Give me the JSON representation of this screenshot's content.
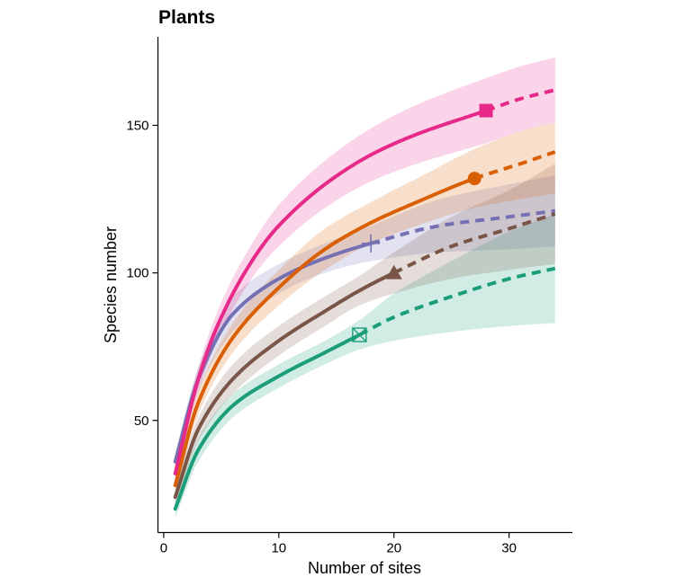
{
  "chart_data": {
    "type": "line",
    "title": "Plants",
    "xlabel": "Number of sites",
    "ylabel": "Species number",
    "xlim": [
      -0.5,
      35.5
    ],
    "ylim": [
      12,
      180
    ],
    "xticks": [
      0,
      10,
      20,
      30
    ],
    "yticks": [
      50,
      100,
      150
    ],
    "grid": false,
    "legend": "none",
    "x_start": 1,
    "x_end": 34,
    "series": [
      {
        "color": "#7570b3",
        "marker": "plus",
        "observed_sites": 18,
        "observed_value": 110,
        "points": [
          [
            1,
            36
          ],
          [
            3,
            64
          ],
          [
            6,
            86
          ],
          [
            10,
            98
          ],
          [
            14,
            105
          ],
          [
            18,
            110
          ],
          [
            24,
            116
          ],
          [
            30,
            119
          ],
          [
            34,
            121
          ]
        ],
        "band_low": [
          [
            1,
            33
          ],
          [
            3,
            60
          ],
          [
            6,
            80
          ],
          [
            10,
            93
          ],
          [
            14,
            100
          ],
          [
            18,
            104
          ],
          [
            24,
            107
          ],
          [
            30,
            108
          ],
          [
            34,
            109
          ]
        ],
        "band_high": [
          [
            1,
            39
          ],
          [
            3,
            68
          ],
          [
            6,
            92
          ],
          [
            10,
            103
          ],
          [
            14,
            110
          ],
          [
            18,
            116
          ],
          [
            24,
            125
          ],
          [
            30,
            130
          ],
          [
            34,
            133
          ]
        ]
      },
      {
        "color": "#1b9e77",
        "marker": "boxed-x",
        "observed_sites": 17,
        "observed_value": 79,
        "points": [
          [
            1,
            20
          ],
          [
            3,
            40
          ],
          [
            6,
            55
          ],
          [
            10,
            65
          ],
          [
            14,
            73
          ],
          [
            17,
            79
          ],
          [
            20,
            85
          ],
          [
            25,
            92
          ],
          [
            30,
            98
          ],
          [
            34,
            101.5
          ]
        ],
        "band_low": [
          [
            1,
            17
          ],
          [
            3,
            36
          ],
          [
            6,
            51
          ],
          [
            10,
            61
          ],
          [
            14,
            69
          ],
          [
            17,
            74
          ],
          [
            20,
            77
          ],
          [
            25,
            80
          ],
          [
            30,
            82
          ],
          [
            34,
            83
          ]
        ],
        "band_high": [
          [
            1,
            23
          ],
          [
            3,
            44
          ],
          [
            6,
            59
          ],
          [
            10,
            69
          ],
          [
            14,
            77
          ],
          [
            17,
            84
          ],
          [
            20,
            93
          ],
          [
            25,
            104
          ],
          [
            30,
            114
          ],
          [
            34,
            120
          ]
        ]
      },
      {
        "color": "#795548",
        "marker": "triangle",
        "observed_sites": 20,
        "observed_value": 100,
        "points": [
          [
            1,
            24
          ],
          [
            3,
            47
          ],
          [
            6,
            64
          ],
          [
            10,
            77
          ],
          [
            14,
            87
          ],
          [
            17,
            94
          ],
          [
            20,
            100
          ],
          [
            25,
            109
          ],
          [
            30,
            115
          ],
          [
            34,
            120
          ]
        ],
        "band_low": [
          [
            1,
            21
          ],
          [
            3,
            43
          ],
          [
            6,
            59
          ],
          [
            10,
            72
          ],
          [
            14,
            82
          ],
          [
            17,
            89
          ],
          [
            20,
            93
          ],
          [
            25,
            98
          ],
          [
            30,
            101
          ],
          [
            34,
            103
          ]
        ],
        "band_high": [
          [
            1,
            27
          ],
          [
            3,
            51
          ],
          [
            6,
            69
          ],
          [
            10,
            82
          ],
          [
            14,
            92
          ],
          [
            17,
            99
          ],
          [
            20,
            107
          ],
          [
            25,
            119
          ],
          [
            30,
            128
          ],
          [
            34,
            137
          ]
        ]
      },
      {
        "color": "#d95f02",
        "marker": "circle",
        "observed_sites": 27,
        "observed_value": 132,
        "points": [
          [
            1,
            28
          ],
          [
            3,
            56
          ],
          [
            6,
            78
          ],
          [
            10,
            95
          ],
          [
            14,
            108
          ],
          [
            18,
            117
          ],
          [
            22,
            124
          ],
          [
            27,
            132
          ],
          [
            31,
            137
          ],
          [
            34,
            141
          ]
        ],
        "band_low": [
          [
            1,
            25
          ],
          [
            3,
            52
          ],
          [
            6,
            73
          ],
          [
            10,
            89
          ],
          [
            14,
            101
          ],
          [
            18,
            110
          ],
          [
            22,
            116
          ],
          [
            27,
            122
          ],
          [
            31,
            125
          ],
          [
            34,
            127
          ]
        ],
        "band_high": [
          [
            1,
            31
          ],
          [
            3,
            60
          ],
          [
            6,
            83
          ],
          [
            10,
            101
          ],
          [
            14,
            115
          ],
          [
            18,
            124
          ],
          [
            22,
            132
          ],
          [
            27,
            142
          ],
          [
            31,
            148
          ],
          [
            34,
            151
          ]
        ]
      },
      {
        "color": "#e7298a",
        "marker": "square",
        "observed_sites": 28,
        "observed_value": 155,
        "points": [
          [
            1,
            32
          ],
          [
            3,
            64
          ],
          [
            5,
            85
          ],
          [
            8,
            106
          ],
          [
            10,
            116
          ],
          [
            14,
            130
          ],
          [
            18,
            140
          ],
          [
            22,
            147
          ],
          [
            28,
            155
          ],
          [
            31,
            159
          ],
          [
            34,
            162
          ]
        ],
        "band_low": [
          [
            1,
            29
          ],
          [
            3,
            60
          ],
          [
            5,
            80
          ],
          [
            8,
            100
          ],
          [
            10,
            109
          ],
          [
            14,
            122
          ],
          [
            18,
            131
          ],
          [
            22,
            137
          ],
          [
            28,
            144
          ],
          [
            31,
            148
          ],
          [
            34,
            151
          ]
        ],
        "band_high": [
          [
            1,
            35
          ],
          [
            3,
            68
          ],
          [
            5,
            90
          ],
          [
            8,
            112
          ],
          [
            10,
            123
          ],
          [
            14,
            138
          ],
          [
            18,
            149
          ],
          [
            22,
            157
          ],
          [
            28,
            166
          ],
          [
            31,
            170
          ],
          [
            34,
            173
          ]
        ]
      }
    ]
  }
}
